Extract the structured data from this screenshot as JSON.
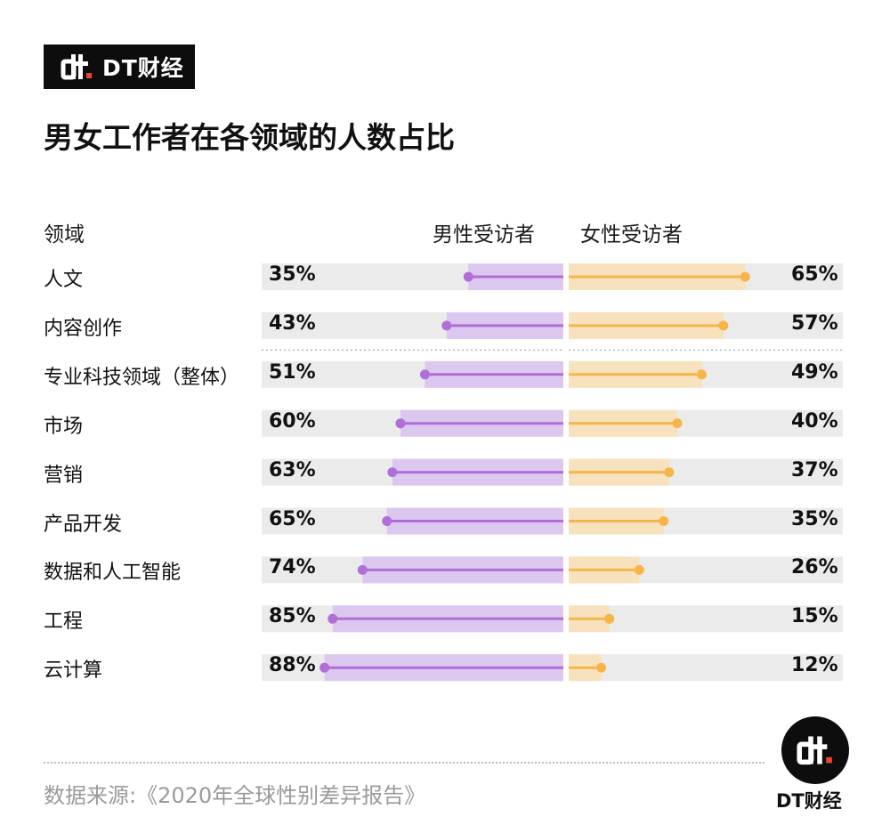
{
  "brand": {
    "name": "DT财经",
    "logo_icon": "dt-logo-icon"
  },
  "title": "男女工作者在各领域的人数占比",
  "columns": {
    "field": "领域",
    "male": "男性受访者",
    "female": "女性受访者"
  },
  "colors": {
    "male": "#b06fd8",
    "male_bar": "#dcc8ee",
    "female": "#f6b54a",
    "female_bar": "#f8e2bd",
    "track": "#ebebeb"
  },
  "chart_data": {
    "type": "bar",
    "categories": [
      "人文",
      "内容创作",
      "专业科技领域（整体）",
      "市场",
      "营销",
      "产品开发",
      "数据和人工智能",
      "工程",
      "云计算"
    ],
    "series": [
      {
        "name": "男性受访者",
        "values": [
          35,
          43,
          51,
          60,
          63,
          65,
          74,
          85,
          88
        ]
      },
      {
        "name": "女性受访者",
        "values": [
          65,
          57,
          49,
          40,
          37,
          35,
          26,
          15,
          12
        ]
      }
    ],
    "labels": {
      "male": [
        "35%",
        "43%",
        "51%",
        "60%",
        "63%",
        "65%",
        "74%",
        "85%",
        "88%"
      ],
      "female": [
        "65%",
        "57%",
        "49%",
        "40%",
        "37%",
        "35%",
        "26%",
        "15%",
        "12%"
      ]
    },
    "xlim": [
      0,
      100
    ],
    "grid": false,
    "legend": "top-center"
  },
  "source": "数据来源:《2020年全球性别差异报告》",
  "footer_brand": "DT财经"
}
